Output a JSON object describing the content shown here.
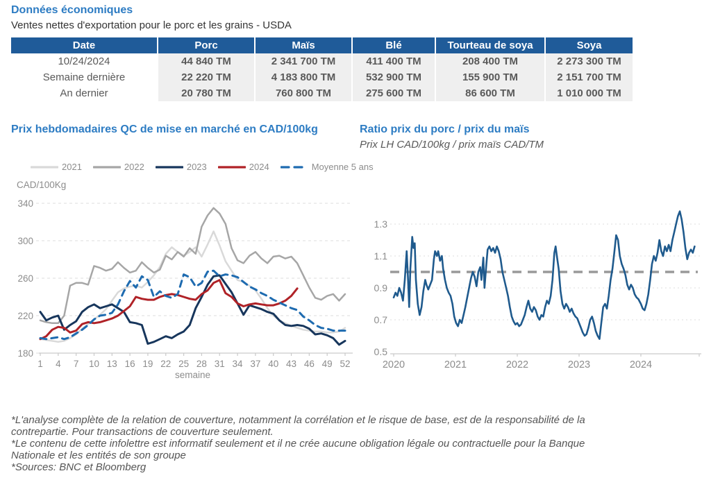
{
  "page": {
    "section_title": "Données économiques",
    "section_subtitle": "Ventes nettes d'exportation pour le porc et les grains - USDA"
  },
  "table": {
    "headers": [
      "Date",
      "Porc",
      "Maïs",
      "Blé",
      "Tourteau de soya",
      "Soya"
    ],
    "rows": [
      [
        "10/24/2024",
        "44 840 TM",
        "2 341 700 TM",
        "411 400 TM",
        "208 400 TM",
        "2 273 300 TM"
      ],
      [
        "Semaine dernière",
        "22 220 TM",
        "4 183 800 TM",
        "532 900 TM",
        "155 900 TM",
        "2 151 700 TM"
      ],
      [
        "An dernier",
        "20 780 TM",
        "760 800 TM",
        "275 600 TM",
        "86 600 TM",
        "1 010 000 TM"
      ]
    ]
  },
  "colors": {
    "title_blue": "#2d7cc3",
    "table_header": "#1f5b99",
    "grid": "#dcdcdc",
    "axis_text": "#8c8c8c",
    "ref_dash": "#999999"
  },
  "footnotes": [
    "*L'analyse complète de la relation de couverture, notamment la corrélation et le risque de base, est de la responsabilité de la",
    "contrepartie. Pour transactions de couverture seulement.",
    "*Le contenu de cette infolettre est informatif seulement et il ne crée aucune obligation légale ou contractuelle pour la Banque",
    "Nationale et les entités de son groupe",
    "*Sources: BNC et Bloomberg"
  ],
  "chart_data": [
    {
      "type": "line",
      "title": "Prix hebdomadaires QC de mise en marché en CAD/100kg",
      "y_axis_unit": "CAD/100Kg",
      "xlabel": "semaine",
      "ylim": [
        180,
        340
      ],
      "yticks": [
        180,
        220,
        260,
        300,
        340
      ],
      "x_ticks": [
        1,
        4,
        7,
        10,
        13,
        16,
        19,
        22,
        25,
        28,
        31,
        34,
        37,
        40,
        43,
        46,
        49,
        52
      ],
      "x_start_week": 1,
      "legend_position": "top",
      "grid": true,
      "series": [
        {
          "name": "2021",
          "color": "#d9d9d9",
          "width": 2.5,
          "dash": null,
          "values": [
            195,
            194,
            193,
            192,
            193,
            196,
            200,
            206,
            211,
            216,
            221,
            227,
            236,
            245,
            249,
            251,
            252,
            250,
            256,
            263,
            272,
            286,
            293,
            288,
            284,
            288,
            293,
            283,
            296,
            310,
            295,
            278,
            268,
            258,
            256,
            252,
            247,
            238,
            228,
            220,
            215,
            212,
            209,
            207,
            205,
            204,
            203,
            203,
            202,
            202,
            203,
            207
          ]
        },
        {
          "name": "2022",
          "color": "#a6a6a6",
          "width": 2.5,
          "dash": null,
          "values": [
            215,
            213,
            212,
            212,
            220,
            252,
            255,
            255,
            253,
            273,
            271,
            268,
            270,
            277,
            271,
            266,
            268,
            277,
            271,
            266,
            269,
            284,
            280,
            288,
            283,
            292,
            286,
            315,
            327,
            335,
            329,
            318,
            292,
            279,
            276,
            284,
            288,
            281,
            276,
            283,
            284,
            281,
            283,
            276,
            263,
            250,
            239,
            237,
            241,
            243,
            236,
            243
          ]
        },
        {
          "name": "2023",
          "color": "#17365c",
          "width": 3,
          "dash": null,
          "values": [
            224,
            215,
            218,
            220,
            205,
            210,
            214,
            224,
            229,
            232,
            228,
            230,
            232,
            228,
            224,
            213,
            212,
            210,
            190,
            192,
            195,
            198,
            196,
            200,
            203,
            210,
            228,
            240,
            253,
            262,
            263,
            254,
            245,
            233,
            221,
            231,
            229,
            227,
            224,
            222,
            215,
            210,
            209,
            210,
            209,
            206,
            200,
            201,
            199,
            196,
            189,
            193
          ]
        },
        {
          "name": "2024",
          "color": "#b02227",
          "width": 3,
          "dash": null,
          "values": [
            195,
            198,
            205,
            208,
            207,
            202,
            204,
            211,
            213,
            212,
            213,
            215,
            217,
            220,
            225,
            230,
            240,
            238,
            237,
            237,
            240,
            242,
            243,
            242,
            240,
            238,
            237,
            243,
            247,
            255,
            258,
            244,
            240,
            233,
            230,
            232,
            233,
            232,
            231,
            231,
            233,
            236,
            241,
            249
          ]
        },
        {
          "name": "Moyenne 5 ans",
          "color": "#1e6bb0",
          "width": 3,
          "dash": "9 7",
          "values": [
            196,
            195,
            196,
            197,
            195,
            197,
            201,
            205,
            210,
            216,
            220,
            221,
            223,
            232,
            246,
            257,
            250,
            262,
            258,
            240,
            246,
            241,
            239,
            243,
            264,
            261,
            251,
            255,
            267,
            268,
            262,
            264,
            263,
            261,
            256,
            251,
            248,
            244,
            241,
            237,
            234,
            231,
            228,
            226,
            219,
            215,
            210,
            207,
            206,
            204,
            204,
            204
          ]
        }
      ]
    },
    {
      "type": "line",
      "title": "Ratio prix du porc / prix du maïs",
      "subtitle": "Prix LH CAD/100kg / prix maïs CAD/TM",
      "ylim": [
        0.5,
        1.4
      ],
      "yticks": [
        0.5,
        0.7,
        0.9,
        1.1,
        1.3
      ],
      "x_ticks": [
        2020,
        2021,
        2022,
        2023,
        2024
      ],
      "grid": true,
      "reference_line": {
        "value": 1.0,
        "color": "#999999",
        "dash": "13 9",
        "width": 3.5
      },
      "series": [
        {
          "name": "ratio porc/maïs",
          "color": "#1f5a8d",
          "width": 2.6,
          "points": [
            [
              2020.0,
              0.84
            ],
            [
              2020.03,
              0.87
            ],
            [
              2020.06,
              0.85
            ],
            [
              2020.09,
              0.9
            ],
            [
              2020.12,
              0.87
            ],
            [
              2020.15,
              0.82
            ],
            [
              2020.18,
              0.95
            ],
            [
              2020.21,
              1.13
            ],
            [
              2020.23,
              0.97
            ],
            [
              2020.25,
              0.78
            ],
            [
              2020.27,
              1.02
            ],
            [
              2020.3,
              1.22
            ],
            [
              2020.32,
              1.15
            ],
            [
              2020.34,
              1.18
            ],
            [
              2020.36,
              0.95
            ],
            [
              2020.39,
              0.8
            ],
            [
              2020.42,
              0.73
            ],
            [
              2020.45,
              0.78
            ],
            [
              2020.48,
              0.88
            ],
            [
              2020.51,
              0.95
            ],
            [
              2020.53,
              0.92
            ],
            [
              2020.56,
              0.89
            ],
            [
              2020.59,
              0.92
            ],
            [
              2020.62,
              0.95
            ],
            [
              2020.65,
              1.08
            ],
            [
              2020.67,
              1.13
            ],
            [
              2020.7,
              1.1
            ],
            [
              2020.72,
              1.13
            ],
            [
              2020.75,
              1.07
            ],
            [
              2020.78,
              1.1
            ],
            [
              2020.8,
              1.02
            ],
            [
              2020.83,
              0.95
            ],
            [
              2020.86,
              0.9
            ],
            [
              2020.89,
              0.87
            ],
            [
              2020.92,
              0.85
            ],
            [
              2020.95,
              0.8
            ],
            [
              2020.98,
              0.72
            ],
            [
              2021.01,
              0.68
            ],
            [
              2021.04,
              0.66
            ],
            [
              2021.07,
              0.7
            ],
            [
              2021.1,
              0.68
            ],
            [
              2021.13,
              0.73
            ],
            [
              2021.16,
              0.78
            ],
            [
              2021.19,
              0.84
            ],
            [
              2021.22,
              0.9
            ],
            [
              2021.25,
              0.96
            ],
            [
              2021.28,
              1.0
            ],
            [
              2021.31,
              0.97
            ],
            [
              2021.34,
              0.91
            ],
            [
              2021.37,
              1.0
            ],
            [
              2021.4,
              1.03
            ],
            [
              2021.42,
              0.95
            ],
            [
              2021.45,
              1.09
            ],
            [
              2021.47,
              0.9
            ],
            [
              2021.5,
              1.05
            ],
            [
              2021.52,
              1.14
            ],
            [
              2021.55,
              1.16
            ],
            [
              2021.58,
              1.13
            ],
            [
              2021.61,
              1.15
            ],
            [
              2021.64,
              1.12
            ],
            [
              2021.67,
              1.16
            ],
            [
              2021.7,
              1.13
            ],
            [
              2021.73,
              1.08
            ],
            [
              2021.76,
              1.0
            ],
            [
              2021.79,
              0.95
            ],
            [
              2021.82,
              0.9
            ],
            [
              2021.85,
              0.85
            ],
            [
              2021.88,
              0.78
            ],
            [
              2021.91,
              0.72
            ],
            [
              2021.94,
              0.69
            ],
            [
              2021.97,
              0.67
            ],
            [
              2022.0,
              0.68
            ],
            [
              2022.03,
              0.66
            ],
            [
              2022.06,
              0.67
            ],
            [
              2022.09,
              0.7
            ],
            [
              2022.12,
              0.73
            ],
            [
              2022.15,
              0.78
            ],
            [
              2022.18,
              0.82
            ],
            [
              2022.21,
              0.77
            ],
            [
              2022.24,
              0.75
            ],
            [
              2022.27,
              0.78
            ],
            [
              2022.3,
              0.76
            ],
            [
              2022.33,
              0.72
            ],
            [
              2022.36,
              0.7
            ],
            [
              2022.39,
              0.73
            ],
            [
              2022.42,
              0.72
            ],
            [
              2022.45,
              0.78
            ],
            [
              2022.48,
              0.82
            ],
            [
              2022.51,
              0.8
            ],
            [
              2022.54,
              0.85
            ],
            [
              2022.57,
              0.95
            ],
            [
              2022.6,
              1.12
            ],
            [
              2022.62,
              1.16
            ],
            [
              2022.64,
              1.1
            ],
            [
              2022.67,
              1.02
            ],
            [
              2022.7,
              0.88
            ],
            [
              2022.73,
              0.8
            ],
            [
              2022.76,
              0.77
            ],
            [
              2022.79,
              0.8
            ],
            [
              2022.82,
              0.78
            ],
            [
              2022.85,
              0.75
            ],
            [
              2022.88,
              0.77
            ],
            [
              2022.91,
              0.74
            ],
            [
              2022.94,
              0.72
            ],
            [
              2022.97,
              0.71
            ],
            [
              2023.0,
              0.68
            ],
            [
              2023.03,
              0.65
            ],
            [
              2023.06,
              0.62
            ],
            [
              2023.09,
              0.6
            ],
            [
              2023.12,
              0.61
            ],
            [
              2023.15,
              0.65
            ],
            [
              2023.18,
              0.7
            ],
            [
              2023.21,
              0.72
            ],
            [
              2023.24,
              0.68
            ],
            [
              2023.27,
              0.63
            ],
            [
              2023.3,
              0.6
            ],
            [
              2023.33,
              0.58
            ],
            [
              2023.36,
              0.68
            ],
            [
              2023.39,
              0.78
            ],
            [
              2023.42,
              0.8
            ],
            [
              2023.45,
              0.77
            ],
            [
              2023.48,
              0.85
            ],
            [
              2023.51,
              0.95
            ],
            [
              2023.54,
              1.02
            ],
            [
              2023.57,
              1.12
            ],
            [
              2023.6,
              1.23
            ],
            [
              2023.63,
              1.2
            ],
            [
              2023.66,
              1.1
            ],
            [
              2023.69,
              1.05
            ],
            [
              2023.72,
              1.02
            ],
            [
              2023.75,
              0.98
            ],
            [
              2023.78,
              0.92
            ],
            [
              2023.81,
              0.89
            ],
            [
              2023.84,
              0.92
            ],
            [
              2023.87,
              0.9
            ],
            [
              2023.9,
              0.86
            ],
            [
              2023.93,
              0.84
            ],
            [
              2023.96,
              0.83
            ],
            [
              2024.0,
              0.8
            ],
            [
              2024.03,
              0.77
            ],
            [
              2024.06,
              0.76
            ],
            [
              2024.09,
              0.8
            ],
            [
              2024.12,
              0.86
            ],
            [
              2024.15,
              0.95
            ],
            [
              2024.18,
              1.05
            ],
            [
              2024.21,
              1.1
            ],
            [
              2024.24,
              1.07
            ],
            [
              2024.27,
              1.12
            ],
            [
              2024.3,
              1.2
            ],
            [
              2024.33,
              1.13
            ],
            [
              2024.36,
              1.1
            ],
            [
              2024.39,
              1.16
            ],
            [
              2024.42,
              1.13
            ],
            [
              2024.45,
              1.17
            ],
            [
              2024.48,
              1.13
            ],
            [
              2024.51,
              1.2
            ],
            [
              2024.54,
              1.25
            ],
            [
              2024.57,
              1.3
            ],
            [
              2024.6,
              1.35
            ],
            [
              2024.63,
              1.38
            ],
            [
              2024.66,
              1.33
            ],
            [
              2024.69,
              1.25
            ],
            [
              2024.72,
              1.15
            ],
            [
              2024.75,
              1.08
            ],
            [
              2024.78,
              1.12
            ],
            [
              2024.81,
              1.14
            ],
            [
              2024.84,
              1.12
            ],
            [
              2024.87,
              1.16
            ]
          ]
        }
      ]
    }
  ]
}
